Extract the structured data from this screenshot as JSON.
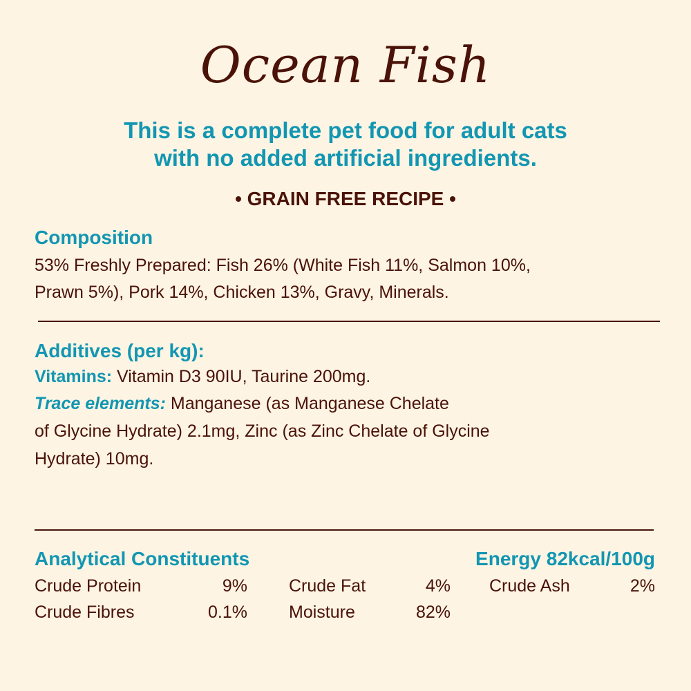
{
  "title": "Ocean Fish",
  "subtitle": [
    "This is a complete pet food for adult cats",
    "with no added artificial ingredients."
  ],
  "badge": "• GRAIN FREE RECIPE •",
  "composition": {
    "heading": "Composition",
    "lines": [
      "53% Freshly Prepared: Fish 26% (White Fish 11%, Salmon 10%,",
      "Prawn 5%), Pork 14%, Chicken 13%, Gravy, Minerals."
    ]
  },
  "additives": {
    "heading": "Additives (per kg):",
    "vitamins_label": "Vitamins:",
    "vitamins_text": " Vitamin D3 90IU, Taurine 200mg.",
    "trace_label": "Trace elements:",
    "trace_text": " Manganese (as Manganese Chelate",
    "lines": [
      "of Glycine Hydrate) 2.1mg, Zinc (as Zinc Chelate of Glycine",
      "Hydrate) 10mg."
    ]
  },
  "analytical": {
    "heading": "Analytical Constituents",
    "energy": "Energy 82kcal/100g",
    "items": [
      {
        "label": "Crude Protein",
        "value": "9%"
      },
      {
        "label": "Crude Fat",
        "value": "4%"
      },
      {
        "label": "Crude Ash",
        "value": "2%"
      },
      {
        "label": "Crude Fibres",
        "value": "0.1%"
      },
      {
        "label": "Moisture",
        "value": "82%"
      }
    ]
  },
  "colors": {
    "background": "#fdf4e3",
    "brown": "#4a1208",
    "teal": "#1296b2"
  }
}
